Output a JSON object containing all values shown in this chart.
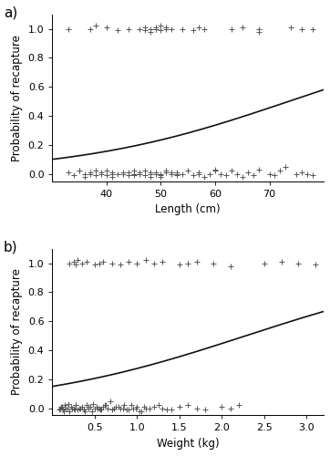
{
  "panel_a": {
    "label": "a)",
    "xlabel": "Length (cm)",
    "ylabel": "Probability of recapture",
    "xlim": [
      30,
      80
    ],
    "ylim": [
      -0.05,
      1.1
    ],
    "xticks": [
      40,
      50,
      60,
      70
    ],
    "yticks": [
      0.0,
      0.2,
      0.4,
      0.6,
      0.8,
      1.0
    ],
    "logistic_intercept": -3.709,
    "logistic_slope": 0.0504,
    "x_line_start": 30,
    "x_line_end": 80,
    "jitter_y_recaptured": [
      1.0,
      1.0,
      1.02,
      1.01,
      0.99,
      1.0,
      1.0,
      1.01,
      0.99,
      1.0,
      0.98,
      1.0,
      1.01,
      1.0,
      1.02,
      0.99,
      1.0,
      1.01,
      1.0,
      1.0,
      0.99,
      1.01,
      1.0,
      1.0,
      1.01,
      0.98,
      1.0,
      1.01,
      1.0,
      1.0
    ],
    "jitter_x_recaptured": [
      33,
      37,
      38,
      40,
      42,
      44,
      46,
      47,
      47,
      48,
      48,
      49,
      49,
      49,
      50,
      50,
      51,
      51,
      52,
      54,
      56,
      57,
      58,
      63,
      65,
      68,
      68,
      74,
      76,
      78
    ],
    "jitter_y_not_recaptured": [
      0.01,
      -0.01,
      0.02,
      0.0,
      -0.02,
      0.01,
      0.0,
      0.02,
      -0.01,
      0.0,
      0.01,
      -0.01,
      0.02,
      0.0,
      0.01,
      -0.02,
      0.0,
      0.01,
      0.0,
      -0.01,
      0.01,
      0.02,
      0.0,
      -0.01,
      0.01,
      0.0,
      0.02,
      -0.01,
      0.0,
      0.01,
      -0.02,
      0.0,
      0.01,
      0.0,
      -0.01,
      0.01,
      0.02,
      0.0,
      -0.01,
      0.01,
      0.0,
      0.02,
      -0.01,
      0.0,
      0.01,
      -0.02,
      0.0,
      0.03,
      0.0,
      -0.01,
      0.02,
      0.0,
      -0.02,
      0.01,
      0.03,
      0.0,
      -0.01,
      0.02,
      0.05,
      0.0,
      0.01,
      0.0,
      -0.01,
      0.02,
      0.0,
      -0.02,
      0.01,
      0.0,
      0.02,
      -0.01
    ],
    "jitter_x_not_recaptured": [
      33,
      34,
      35,
      36,
      36,
      37,
      37,
      38,
      38,
      39,
      39,
      40,
      40,
      41,
      41,
      41,
      42,
      43,
      43,
      44,
      44,
      45,
      45,
      45,
      46,
      46,
      47,
      47,
      48,
      48,
      48,
      49,
      49,
      50,
      50,
      51,
      51,
      52,
      53,
      53,
      54,
      55,
      56,
      57,
      57,
      58,
      59,
      60,
      61,
      62,
      63,
      64,
      65,
      66,
      68,
      70,
      71,
      72,
      73,
      75,
      76,
      77,
      78,
      35,
      45,
      50,
      52,
      53,
      60,
      67
    ]
  },
  "panel_b": {
    "label": "b)",
    "xlabel": "Weight (kg)",
    "ylabel": "Probability of recapture",
    "xlim": [
      0.0,
      3.2
    ],
    "ylim": [
      -0.05,
      1.1
    ],
    "xticks": [
      0.5,
      1.0,
      1.5,
      2.0,
      2.5,
      3.0
    ],
    "yticks": [
      0.0,
      0.2,
      0.4,
      0.6,
      0.8,
      1.0
    ],
    "logistic_intercept": -1.735,
    "logistic_slope": 0.759,
    "x_line_start": 0.0,
    "x_line_end": 3.2,
    "jitter_y_recaptured": [
      1.0,
      1.01,
      0.99,
      1.02,
      1.0,
      1.01,
      0.99,
      1.0,
      1.01,
      1.0,
      0.99,
      1.01,
      1.0,
      1.02,
      1.0,
      1.01,
      0.99,
      1.0,
      1.01,
      1.0,
      0.98,
      1.0,
      1.01,
      1.0,
      0.99
    ],
    "jitter_x_recaptured": [
      0.2,
      0.25,
      0.28,
      0.3,
      0.35,
      0.4,
      0.5,
      0.55,
      0.6,
      0.7,
      0.8,
      0.9,
      1.0,
      1.1,
      1.2,
      1.3,
      1.5,
      1.6,
      1.7,
      1.9,
      2.1,
      2.5,
      2.7,
      2.9,
      3.1
    ],
    "jitter_y_not_recaptured": [
      0.01,
      -0.01,
      0.02,
      0.0,
      -0.02,
      0.01,
      0.0,
      0.02,
      -0.01,
      0.0,
      0.01,
      -0.01,
      0.02,
      0.0,
      0.01,
      -0.02,
      0.0,
      0.01,
      0.0,
      -0.01,
      0.01,
      0.02,
      0.0,
      -0.01,
      0.01,
      0.0,
      0.02,
      -0.01,
      0.0,
      0.01,
      -0.02,
      0.0,
      0.01,
      0.0,
      -0.01,
      0.01,
      0.02,
      0.0,
      -0.01,
      0.01,
      0.0,
      0.02,
      -0.01,
      0.0,
      0.01,
      -0.02,
      0.0,
      0.03,
      0.0,
      -0.01,
      0.02,
      0.0,
      -0.02,
      0.01,
      0.03,
      0.0,
      -0.01,
      0.02,
      0.05,
      0.0,
      0.01,
      0.0,
      -0.01,
      0.02,
      0.0,
      -0.02,
      0.01,
      0.0,
      0.02,
      -0.01
    ],
    "jitter_x_not_recaptured": [
      0.1,
      0.12,
      0.15,
      0.18,
      0.2,
      0.22,
      0.25,
      0.27,
      0.3,
      0.32,
      0.35,
      0.37,
      0.4,
      0.42,
      0.45,
      0.47,
      0.5,
      0.52,
      0.55,
      0.57,
      0.6,
      0.62,
      0.65,
      0.7,
      0.75,
      0.8,
      0.85,
      0.9,
      0.95,
      1.0,
      1.05,
      1.1,
      1.2,
      1.3,
      1.4,
      1.5,
      1.6,
      1.7,
      1.8,
      2.0,
      2.1,
      2.2,
      0.08,
      0.09,
      0.11,
      0.13,
      0.16,
      0.19,
      0.23,
      0.26,
      0.28,
      0.33,
      0.38,
      0.43,
      0.48,
      0.53,
      0.58,
      0.63,
      0.68,
      0.73,
      0.78,
      0.83,
      0.88,
      0.93,
      0.98,
      1.03,
      1.08,
      1.15,
      1.25,
      1.35
    ]
  },
  "marker": "+",
  "marker_size": 4,
  "marker_color": "#555555",
  "line_color": "#111111",
  "line_width": 1.2,
  "background_color": "#ffffff",
  "panel_label_fontsize": 11,
  "axis_label_fontsize": 8.5,
  "tick_fontsize": 8
}
